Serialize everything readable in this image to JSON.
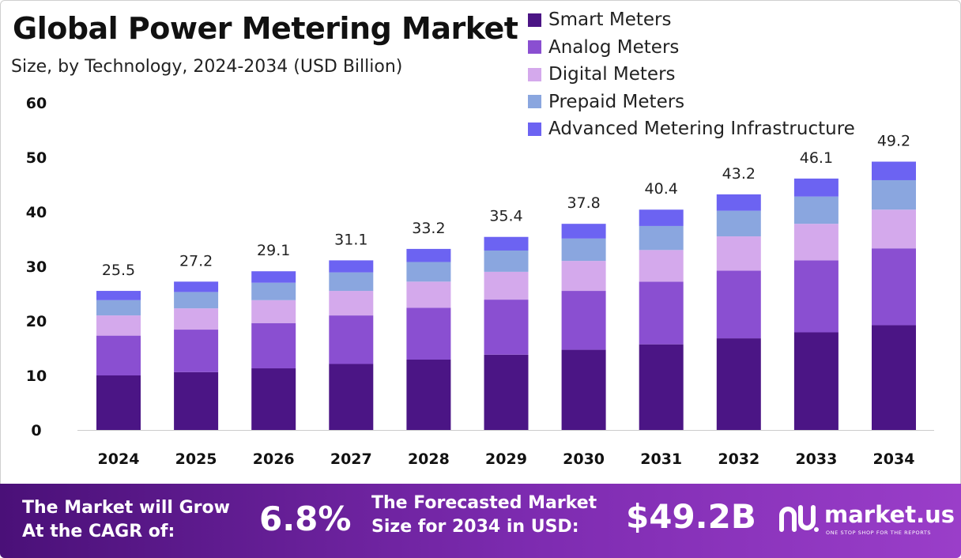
{
  "header": {
    "title": "Global Power Metering Market",
    "subtitle": "Size, by Technology, 2024-2034 (USD Billion)"
  },
  "chart_data": {
    "type": "bar",
    "stacked": true,
    "categories": [
      "2024",
      "2025",
      "2026",
      "2027",
      "2028",
      "2029",
      "2030",
      "2031",
      "2032",
      "2033",
      "2034"
    ],
    "series": [
      {
        "name": "Smart Meters",
        "color": "#4b1585",
        "values": [
          10.0,
          10.6,
          11.3,
          12.1,
          12.9,
          13.8,
          14.7,
          15.7,
          16.8,
          17.9,
          19.2
        ]
      },
      {
        "name": "Analog Meters",
        "color": "#8a4fd1",
        "values": [
          7.3,
          7.8,
          8.3,
          8.9,
          9.5,
          10.1,
          10.8,
          11.5,
          12.4,
          13.2,
          14.1
        ]
      },
      {
        "name": "Digital Meters",
        "color": "#d4a9ec",
        "values": [
          3.7,
          3.9,
          4.2,
          4.5,
          4.8,
          5.1,
          5.5,
          5.8,
          6.3,
          6.7,
          7.1
        ]
      },
      {
        "name": "Prepaid Meters",
        "color": "#8aa6df",
        "values": [
          2.8,
          3.0,
          3.2,
          3.4,
          3.6,
          3.9,
          4.1,
          4.4,
          4.7,
          5.0,
          5.4
        ]
      },
      {
        "name": "Advanced Metering Infrastructure",
        "color": "#6c63f2",
        "values": [
          1.7,
          1.9,
          2.1,
          2.2,
          2.4,
          2.5,
          2.7,
          3.0,
          3.0,
          3.3,
          3.4
        ]
      }
    ],
    "totals": [
      "25.5",
      "27.2",
      "29.1",
      "31.1",
      "33.2",
      "35.4",
      "37.8",
      "40.4",
      "43.2",
      "46.1",
      "49.2"
    ],
    "ylim": [
      0,
      60
    ],
    "yticks": [
      "0",
      "10",
      "20",
      "30",
      "40",
      "50",
      "60"
    ],
    "xlabel": "",
    "ylabel": "",
    "legend_position": "top-right",
    "grid": false
  },
  "footer": {
    "cagr_label_line1": "The Market will Grow",
    "cagr_label_line2": "At the CAGR of:",
    "cagr_value": "6.8%",
    "forecast_label_line1": "The Forecasted Market",
    "forecast_label_line2": "Size for 2034 in USD:",
    "forecast_value": "$49.2B",
    "brand_name": "market.us",
    "brand_tagline": "ONE STOP SHOP FOR THE REPORTS"
  }
}
